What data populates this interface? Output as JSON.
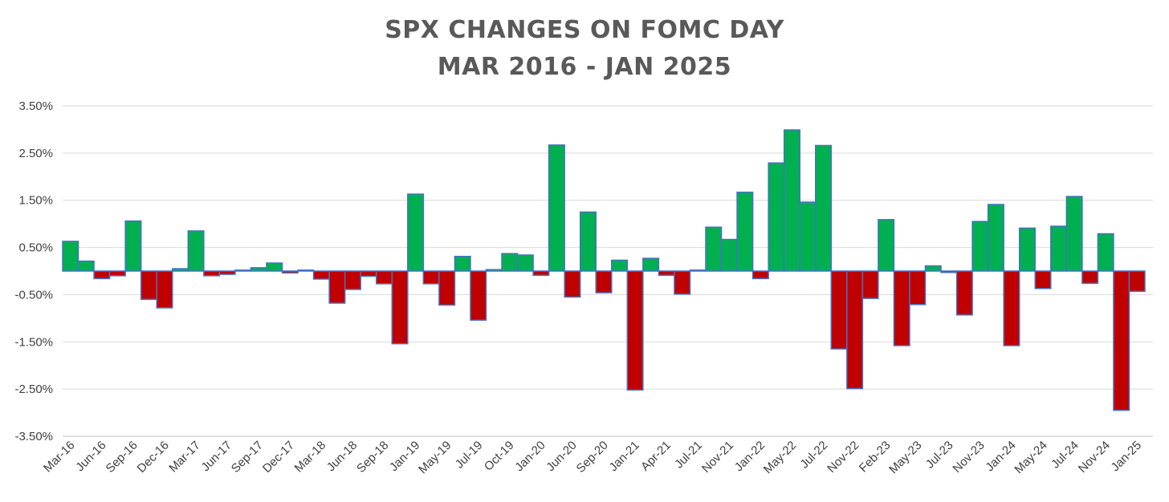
{
  "chart_data": {
    "type": "bar",
    "title": "SPX CHANGES ON FOMC DAY",
    "subtitle": "MAR 2016 - JAN 2025",
    "xlabel": "",
    "ylabel": "",
    "ylim": [
      -3.5,
      3.5
    ],
    "y_ticks": [
      "3.50%",
      "2.50%",
      "1.50%",
      "0.50%",
      "-0.50%",
      "-1.50%",
      "-2.50%",
      "-3.50%"
    ],
    "y_tick_values": [
      3.5,
      2.5,
      1.5,
      0.5,
      -0.5,
      -1.5,
      -2.5,
      -3.5
    ],
    "x_tick_labels": [
      "Mar-16",
      "Jun-16",
      "Sep-16",
      "Dec-16",
      "Mar-17",
      "Jun-17",
      "Sep-17",
      "Dec-17",
      "Mar-18",
      "Jun-18",
      "Sep-18",
      "Jan-19",
      "May-19",
      "Jul-19",
      "Oct-19",
      "Jan-20",
      "Jun-20",
      "Sep-20",
      "Jan-21",
      "Apr-21",
      "Jul-21",
      "Nov-21",
      "Jan-22",
      "May-22",
      "Jul-22",
      "Nov-22",
      "Feb-23",
      "May-23",
      "Jul-23",
      "Nov-23",
      "Jan-24",
      "May-24",
      "Jul-24",
      "Nov-24",
      "Jan-25"
    ],
    "label_every": 2,
    "grid": true,
    "legend": "none",
    "positive_color": "#00B050",
    "negative_color": "#C00000",
    "bar_edge_color": "#4472C4",
    "values": [
      0.63,
      0.21,
      -0.16,
      -0.1,
      1.06,
      -0.6,
      -0.78,
      0.05,
      0.85,
      -0.1,
      -0.07,
      0.02,
      0.07,
      0.17,
      -0.04,
      0.02,
      -0.17,
      -0.68,
      -0.39,
      -0.11,
      -0.27,
      -1.54,
      1.63,
      -0.27,
      -0.72,
      0.31,
      -1.04,
      0.03,
      0.37,
      0.34,
      -0.09,
      2.67,
      -0.55,
      1.25,
      -0.46,
      0.23,
      -2.52,
      0.27,
      -0.09,
      -0.49,
      0.02,
      0.93,
      0.67,
      1.67,
      -0.16,
      2.29,
      2.99,
      1.46,
      2.66,
      -1.65,
      -2.49,
      -0.58,
      1.09,
      -1.58,
      -0.71,
      0.11,
      -0.03,
      -0.93,
      1.05,
      1.41,
      -1.58,
      0.91,
      -0.37,
      0.95,
      1.58,
      -0.26,
      0.79,
      -2.95,
      -0.43
    ]
  }
}
